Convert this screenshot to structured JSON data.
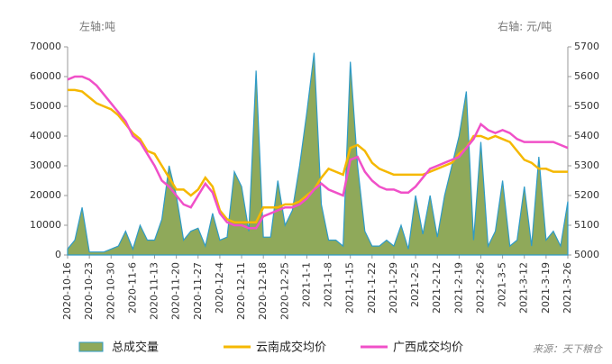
{
  "chart_data": {
    "type": "area_line",
    "y_label": "左轴:吨",
    "y2_label": "右轴: 元/吨",
    "source": "来源：天下粮仓",
    "categories": [
      "2020-10-16",
      null,
      null,
      "2020-10-23",
      null,
      null,
      "2020-10-30",
      null,
      null,
      "2020-11-6",
      null,
      null,
      "2020-11-13",
      null,
      null,
      "2020-11-20",
      null,
      null,
      "2020-11-27",
      null,
      null,
      "2020-12-4",
      null,
      null,
      "2020-12-11",
      null,
      null,
      "2020-12-18",
      null,
      null,
      "2020-12-25",
      null,
      null,
      "2021-1-1",
      null,
      null,
      "2021-1-8",
      null,
      null,
      "2021-1-15",
      null,
      null,
      "2021-1-22",
      null,
      null,
      "2021-1-29",
      null,
      null,
      "2021-2-5",
      null,
      null,
      "2021-2-12",
      null,
      null,
      "2021-2-19",
      null,
      null,
      "2021-2-26",
      null,
      null,
      "2021-3-5",
      null,
      null,
      "2021-3-12",
      null,
      null,
      "2021-3-19",
      null,
      null,
      "2021-3-26"
    ],
    "series": [
      {
        "name": "总成交量",
        "type": "area",
        "color": "#8fa95a",
        "edge_color": "#2e9bc8",
        "values": [
          2000,
          5000,
          16000,
          1000,
          1000,
          1000,
          2000,
          3000,
          8000,
          2000,
          10000,
          5000,
          5000,
          12000,
          30000,
          20000,
          5000,
          8000,
          9000,
          3000,
          14000,
          5000,
          6000,
          28000,
          23000,
          8000,
          62000,
          6000,
          6000,
          25000,
          10000,
          15000,
          30000,
          48000,
          68000,
          17000,
          5000,
          5000,
          3000,
          65000,
          30000,
          8000,
          3000,
          3000,
          5000,
          3000,
          10000,
          2000,
          20000,
          7000,
          20000,
          6000,
          20000,
          30000,
          40000,
          55000,
          5000,
          38000,
          3000,
          8000,
          25000,
          3000,
          5000,
          23000,
          3000,
          33000,
          5000,
          8000,
          3000,
          18000
        ]
      },
      {
        "name": "云南成交均价",
        "type": "line",
        "axis": "y2",
        "color": "#f5b800",
        "values": [
          5555,
          5555,
          5550,
          5530,
          5510,
          5500,
          5490,
          5470,
          5440,
          5410,
          5390,
          5350,
          5340,
          5300,
          5260,
          5220,
          5220,
          5200,
          5220,
          5260,
          5230,
          5150,
          5120,
          5110,
          5110,
          5110,
          5110,
          5160,
          5160,
          5160,
          5170,
          5170,
          5180,
          5200,
          5220,
          5260,
          5290,
          5280,
          5270,
          5360,
          5370,
          5350,
          5310,
          5290,
          5280,
          5270,
          5270,
          5270,
          5270,
          5270,
          5280,
          5290,
          5300,
          5310,
          5340,
          5360,
          5400,
          5400,
          5390,
          5400,
          5390,
          5380,
          5350,
          5320,
          5310,
          5290,
          5290,
          5280,
          5280,
          5280
        ]
      },
      {
        "name": "广西成交均价",
        "type": "line",
        "axis": "y2",
        "color": "#f050c8",
        "values": [
          5590,
          5600,
          5600,
          5590,
          5570,
          5540,
          5510,
          5480,
          5450,
          5400,
          5380,
          5340,
          5300,
          5250,
          5230,
          5200,
          5170,
          5160,
          5200,
          5240,
          5210,
          5140,
          5110,
          5100,
          5100,
          5090,
          5090,
          5130,
          5140,
          5150,
          5160,
          5160,
          5170,
          5190,
          5220,
          5240,
          5220,
          5210,
          5200,
          5320,
          5330,
          5280,
          5250,
          5230,
          5220,
          5220,
          5210,
          5210,
          5230,
          5260,
          5290,
          5300,
          5310,
          5320,
          5330,
          5360,
          5390,
          5440,
          5420,
          5410,
          5420,
          5410,
          5390,
          5380,
          5380,
          5380,
          5380,
          5380,
          5370,
          5360
        ]
      }
    ],
    "ylim": [
      0,
      70000
    ],
    "yticks": [
      0,
      10000,
      20000,
      30000,
      40000,
      50000,
      60000,
      70000
    ],
    "y2lim": [
      5000,
      5700
    ],
    "y2ticks": [
      5000,
      5100,
      5200,
      5300,
      5400,
      5500,
      5600,
      5700
    ]
  }
}
